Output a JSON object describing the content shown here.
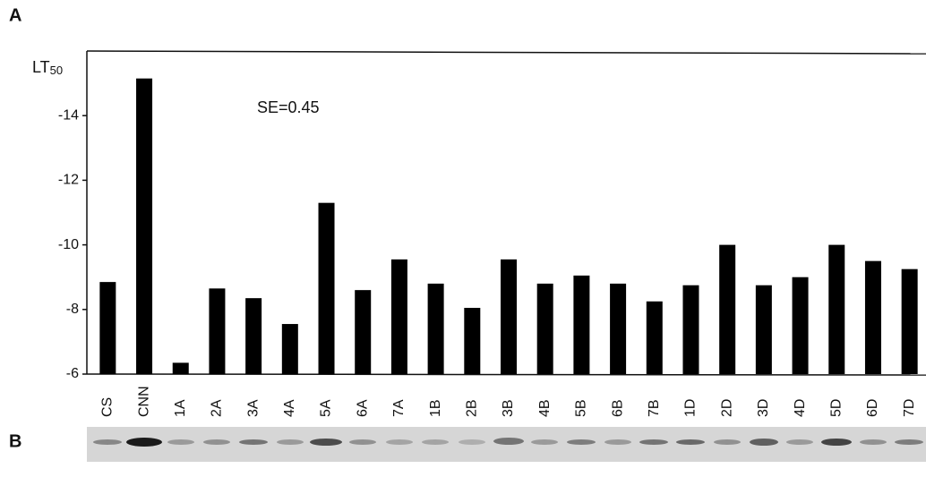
{
  "panel_a_label": "A",
  "panel_b_label": "B",
  "chart_data": {
    "type": "bar",
    "y_label": "LT",
    "y_label_subscript": "50",
    "annotation": "SE=0.45",
    "categories": [
      "CS",
      "CNN",
      "1A",
      "2A",
      "3A",
      "4A",
      "5A",
      "6A",
      "7A",
      "1B",
      "2B",
      "3B",
      "4B",
      "5B",
      "6B",
      "7B",
      "1D",
      "2D",
      "3D",
      "4D",
      "5D",
      "6D",
      "7D"
    ],
    "values": [
      -8.85,
      -15.15,
      -6.35,
      -8.65,
      -8.35,
      -7.55,
      -11.3,
      -8.6,
      -9.55,
      -8.8,
      -8.05,
      -9.55,
      -8.8,
      -9.05,
      -8.8,
      -8.25,
      -8.75,
      -10.0,
      -8.75,
      -9.0,
      -10.0,
      -9.5,
      -9.25
    ],
    "color": "#000000",
    "ylim": [
      -6,
      -16
    ],
    "yticks": [
      -6,
      -8,
      -10,
      -12,
      -14
    ],
    "grid": false
  }
}
